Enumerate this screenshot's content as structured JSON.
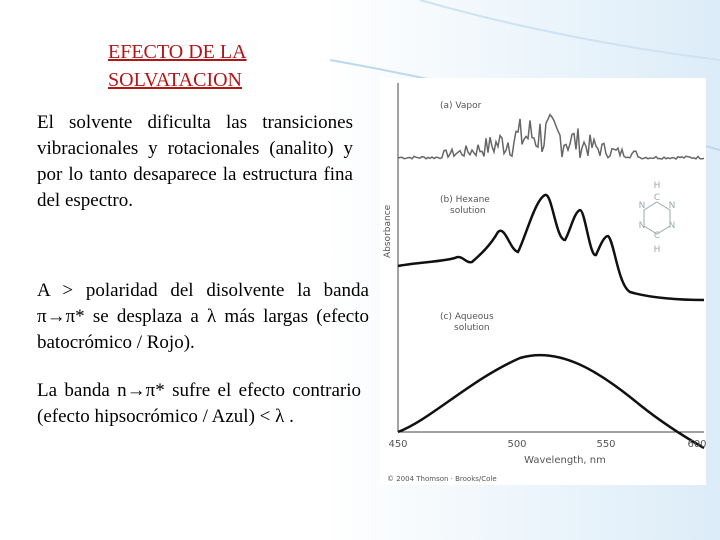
{
  "title": [
    "EFECTO DE LA",
    "SOLVATACION"
  ],
  "paragraphs": [
    "El solvente dificulta las transiciones vibracionales y rotacionales (analito) y por lo tanto desaparece la estructura fina del espectro.",
    "A > polaridad del disolvente la banda  π→π* se desplaza a λ más largas (efecto batocrómico / Rojo).",
    "La banda n→π* sufre el efecto contrario (efecto hipsocrómico / Azul) < λ ."
  ],
  "figure": {
    "panels": [
      [
        "(a) Vapor"
      ],
      [
        "(b) Hexane",
        "solution"
      ],
      [
        "(c) Aqueous",
        "solution"
      ]
    ],
    "y_label": "Absorbance",
    "x_ticks": [
      "450",
      "500",
      "550",
      "600"
    ],
    "x_label": "Wavelength, nm",
    "credit": "© 2004 Thomson · Brooks/Cole",
    "atoms": [
      "H",
      "C",
      "N",
      "N",
      "N",
      "N",
      "C",
      "H"
    ]
  }
}
